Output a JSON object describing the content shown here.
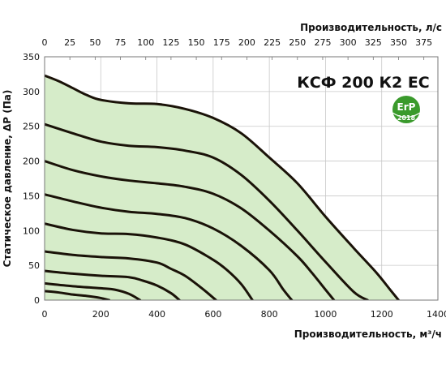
{
  "chart_data": {
    "type": "line",
    "title": "КСФ 200 К2 ЕС",
    "xlabel": "Производительность, м³/ч",
    "x2label": "Производительность, л/с",
    "ylabel": "Статическое давление, ΔP (Па)",
    "xlim": [
      0,
      1400
    ],
    "ylim": [
      0,
      350
    ],
    "x2lim": [
      0,
      388.9
    ],
    "xticks": [
      0,
      200,
      400,
      600,
      800,
      1000,
      1200,
      1400
    ],
    "x2ticks": [
      0,
      25,
      50,
      75,
      100,
      125,
      150,
      175,
      200,
      225,
      250,
      275,
      300,
      325,
      350,
      375
    ],
    "yticks": [
      0,
      50,
      100,
      150,
      200,
      250,
      300,
      350
    ],
    "grid": true,
    "legend": "none",
    "fill_color": "#d6ecc9",
    "line_color": "#1a1208",
    "series": [
      {
        "x": [
          0,
          50,
          100,
          150,
          200,
          300,
          400,
          500,
          600,
          700,
          800,
          900,
          1000,
          1100,
          1180,
          1230,
          1260
        ],
        "y": [
          323,
          315,
          305,
          295,
          288,
          283,
          282,
          275,
          262,
          240,
          205,
          168,
          120,
          75,
          40,
          15,
          0
        ]
      },
      {
        "x": [
          0,
          100,
          200,
          300,
          400,
          500,
          600,
          700,
          800,
          900,
          1000,
          1100,
          1150
        ],
        "y": [
          253,
          240,
          228,
          222,
          220,
          215,
          205,
          180,
          143,
          100,
          55,
          12,
          0
        ]
      },
      {
        "x": [
          0,
          100,
          200,
          300,
          400,
          500,
          600,
          700,
          800,
          900,
          950,
          1000,
          1030
        ],
        "y": [
          200,
          187,
          178,
          172,
          168,
          163,
          153,
          132,
          100,
          63,
          40,
          15,
          0
        ]
      },
      {
        "x": [
          0,
          100,
          200,
          300,
          400,
          500,
          600,
          700,
          800,
          850,
          880
        ],
        "y": [
          152,
          142,
          133,
          127,
          124,
          118,
          103,
          78,
          43,
          15,
          0
        ]
      },
      {
        "x": [
          0,
          100,
          200,
          300,
          400,
          500,
          600,
          650,
          700,
          740
        ],
        "y": [
          110,
          101,
          96,
          95,
          90,
          80,
          58,
          43,
          23,
          0
        ]
      },
      {
        "x": [
          0,
          100,
          200,
          300,
          400,
          450,
          500,
          560,
          610
        ],
        "y": [
          70,
          65,
          62,
          60,
          54,
          45,
          35,
          17,
          0
        ]
      },
      {
        "x": [
          0,
          100,
          200,
          300,
          350,
          400,
          450,
          480
        ],
        "y": [
          42,
          38,
          35,
          33,
          28,
          21,
          10,
          0
        ]
      },
      {
        "x": [
          0,
          100,
          200,
          250,
          300,
          340
        ],
        "y": [
          24,
          20,
          17,
          15,
          9,
          0
        ]
      },
      {
        "x": [
          0,
          50,
          100,
          150,
          200,
          230
        ],
        "y": [
          13,
          11,
          8,
          6,
          3,
          0
        ]
      }
    ],
    "badge": {
      "text": "ErP",
      "year": "2018",
      "color": "#3a9a2c"
    }
  }
}
